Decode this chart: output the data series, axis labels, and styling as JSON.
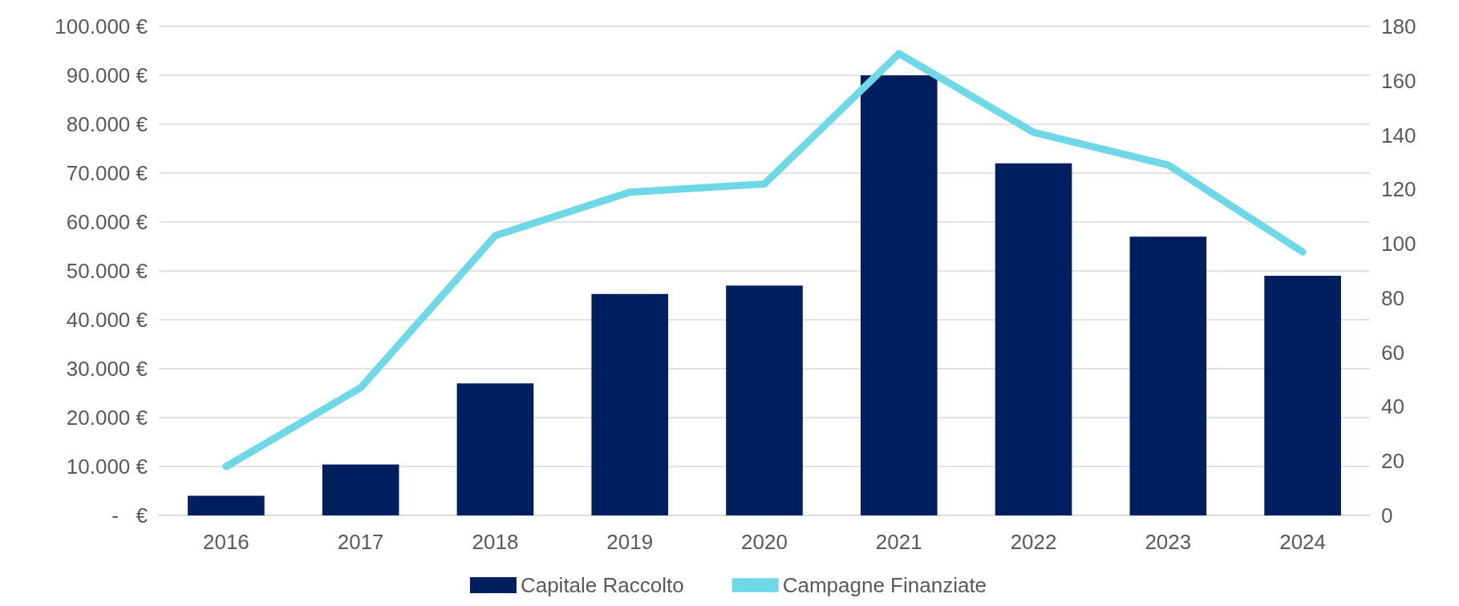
{
  "chart_data": {
    "type": "bar",
    "categories": [
      "2016",
      "2017",
      "2018",
      "2019",
      "2020",
      "2021",
      "2022",
      "2023",
      "2024"
    ],
    "series": [
      {
        "name": "Capitale Raccolto",
        "color": "#001f5f",
        "values": [
          4000,
          10400,
          27000,
          45300,
          47000,
          90000,
          72000,
          57000,
          49000
        ]
      },
      {
        "name": "Campagne Finanziate",
        "type": "line",
        "axis": "y2",
        "color": "#6fd8e6",
        "values": [
          18,
          47,
          103,
          119,
          122,
          170,
          141,
          129,
          97
        ]
      }
    ],
    "ylim": [
      0,
      100000
    ],
    "yticks": [
      {
        "value": 0,
        "label": "-   €"
      },
      {
        "value": 10000,
        "label": "10.000 €"
      },
      {
        "value": 20000,
        "label": "20.000 €"
      },
      {
        "value": 30000,
        "label": "30.000 €"
      },
      {
        "value": 40000,
        "label": "40.000 €"
      },
      {
        "value": 50000,
        "label": "50.000 €"
      },
      {
        "value": 60000,
        "label": "60.000 €"
      },
      {
        "value": 70000,
        "label": "70.000 €"
      },
      {
        "value": 80000,
        "label": "80.000 €"
      },
      {
        "value": 90000,
        "label": "90.000 €"
      },
      {
        "value": 100000,
        "label": "100.000 €"
      }
    ],
    "y2lim": [
      0,
      180
    ],
    "y2ticks": [
      0,
      20,
      40,
      60,
      80,
      100,
      120,
      140,
      160,
      180
    ],
    "grid": "y",
    "legend": "bottom",
    "marker": "none",
    "line_style": "solid"
  }
}
